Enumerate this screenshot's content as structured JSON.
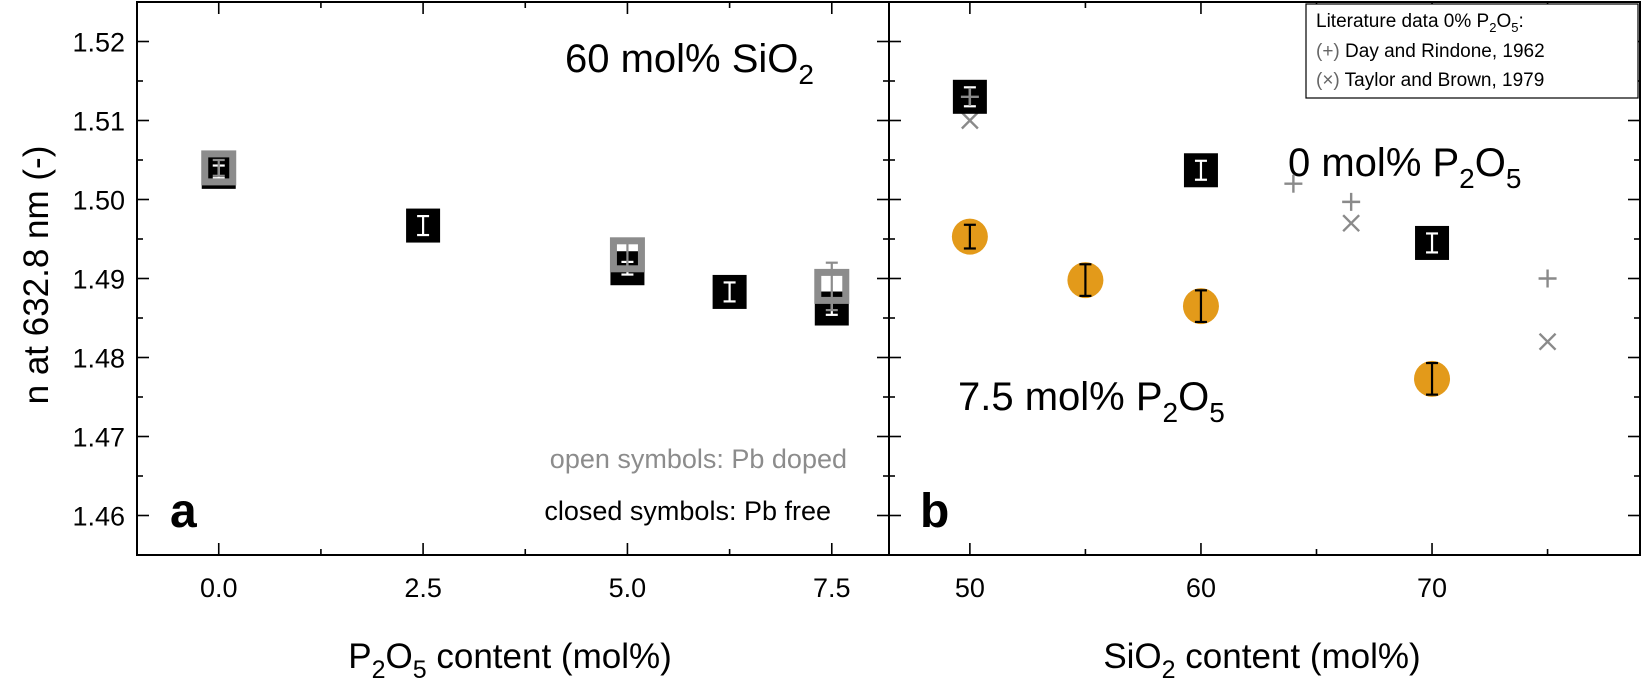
{
  "colors": {
    "pb_doped": "#8c8c8c",
    "pb_free": "#000000",
    "p2o5_series": "#e39a1a",
    "literature": "#8a8a8a"
  },
  "y_axis": {
    "label": "n at 632.8 nm (-)",
    "ticks": [
      "1.46",
      "1.47",
      "1.48",
      "1.49",
      "1.50",
      "1.51",
      "1.52"
    ]
  },
  "panel_a": {
    "letter": "a",
    "composition_value": "60 mol% SiO",
    "composition_sub": "2",
    "legend_open": "open symbols: Pb doped",
    "legend_closed": "closed symbols: Pb free",
    "xlabel_pre": "P",
    "xlabel_sub1": "2",
    "xlabel_mid": "O",
    "xlabel_sub2": "5",
    "xlabel_post": " content (mol%)",
    "x_ticks": [
      "0.0",
      "2.5",
      "5.0",
      "7.5"
    ]
  },
  "panel_b": {
    "letter": "b",
    "series0_pre": "0 mol% P",
    "series0_sub1": "2",
    "series0_mid": "O",
    "series0_sub2": "5",
    "series75_pre": "7.5 mol% P",
    "series75_sub1": "2",
    "series75_mid": "O",
    "series75_sub2": "5",
    "xlabel_pre": "SiO",
    "xlabel_sub": "2",
    "xlabel_post": " content (mol%)",
    "x_ticks": [
      "50",
      "60",
      "70"
    ],
    "lit_title_pre": "Literature data 0% P",
    "lit_title_sub1": "2",
    "lit_title_mid": "O",
    "lit_title_sub2": "5",
    "lit_title_post": ":",
    "lit_entry1_sym": "(+)",
    "lit_entry1": " Day and Rindone, 1962",
    "lit_entry2_sym": "(×)",
    "lit_entry2": " Taylor and Brown, 1979"
  },
  "chart_data": [
    {
      "type": "scatter",
      "panel": "a",
      "xlabel": "P2O5 content (mol%)",
      "ylabel": "n at 632.8 nm (-)",
      "xlim": [
        -1.0,
        8.2
      ],
      "ylim": [
        1.455,
        1.525
      ],
      "grid": false,
      "series": [
        {
          "name": "closed symbols: Pb free",
          "marker": "filled-square",
          "x": [
            0.0,
            2.5,
            5.0,
            6.25,
            7.5
          ],
          "y": [
            1.5035,
            1.4967,
            1.4913,
            1.4883,
            1.4862
          ],
          "yerr": [
            0.0008,
            0.0012,
            0.0008,
            0.0012,
            0.0008
          ]
        },
        {
          "name": "open symbols: Pb doped",
          "marker": "open-square",
          "x": [
            0.0,
            5.0,
            7.5
          ],
          "y": [
            1.504,
            1.493,
            1.489
          ],
          "yerr": [
            0.001,
            0.002,
            0.003
          ]
        }
      ]
    },
    {
      "type": "scatter",
      "panel": "b",
      "xlabel": "SiO2 content (mol%)",
      "ylabel": "n at 632.8 nm (-)",
      "xlim": [
        46.5,
        79.0
      ],
      "ylim": [
        1.455,
        1.525
      ],
      "grid": false,
      "series": [
        {
          "name": "0 mol% P2O5",
          "marker": "filled-square",
          "x": [
            50,
            60,
            70
          ],
          "y": [
            1.513,
            1.5037,
            1.4945
          ],
          "yerr": [
            0.0012,
            0.0012,
            0.0012
          ]
        },
        {
          "name": "7.5 mol% P2O5",
          "marker": "filled-circle",
          "x": [
            50,
            55,
            60,
            70
          ],
          "y": [
            1.4953,
            1.4898,
            1.4865,
            1.4773
          ],
          "yerr": [
            0.0015,
            0.002,
            0.002,
            0.002
          ]
        },
        {
          "name": "Day and Rindone, 1962",
          "marker": "plus",
          "x": [
            50,
            64,
            66.5,
            75
          ],
          "y": [
            1.513,
            1.502,
            1.4997,
            1.49
          ]
        },
        {
          "name": "Taylor and Brown, 1979",
          "marker": "cross",
          "x": [
            50,
            66.5,
            75
          ],
          "y": [
            1.51,
            1.497,
            1.482
          ]
        }
      ]
    }
  ]
}
